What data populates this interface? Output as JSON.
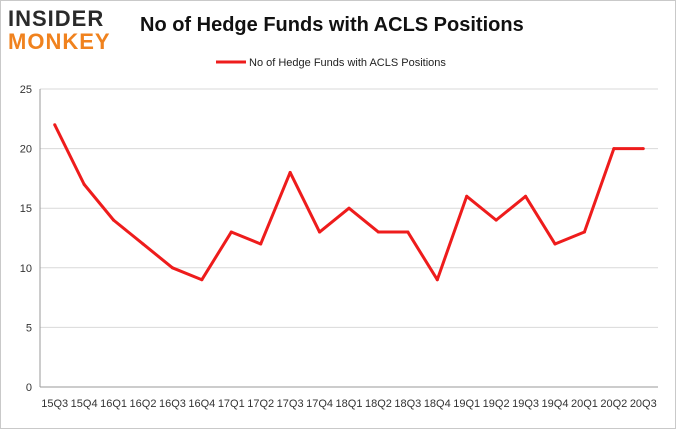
{
  "logo": {
    "line1": "INSIDER",
    "line2": "MONKEY"
  },
  "colors": {
    "line": "#ee1c1c",
    "grid": "#d9d9d9",
    "axis": "#999999"
  },
  "chart_data": {
    "type": "line",
    "title": "No of Hedge Funds with ACLS Positions",
    "categories": [
      "15Q3",
      "15Q4",
      "16Q1",
      "16Q2",
      "16Q3",
      "16Q4",
      "17Q1",
      "17Q2",
      "17Q3",
      "17Q4",
      "18Q1",
      "18Q2",
      "18Q3",
      "18Q4",
      "19Q1",
      "19Q2",
      "19Q3",
      "19Q4",
      "20Q1",
      "20Q2",
      "20Q3"
    ],
    "series": [
      {
        "name": "No of Hedge Funds with ACLS Positions",
        "values": [
          22,
          17,
          14,
          12,
          10,
          9,
          13,
          12,
          18,
          13,
          15,
          13,
          13,
          9,
          16,
          14,
          16,
          12,
          13,
          20,
          20
        ]
      }
    ],
    "yticks": [
      0,
      5,
      10,
      15,
      20,
      25
    ],
    "ylim": [
      0,
      25
    ],
    "grid": true,
    "legend": "top-center"
  }
}
